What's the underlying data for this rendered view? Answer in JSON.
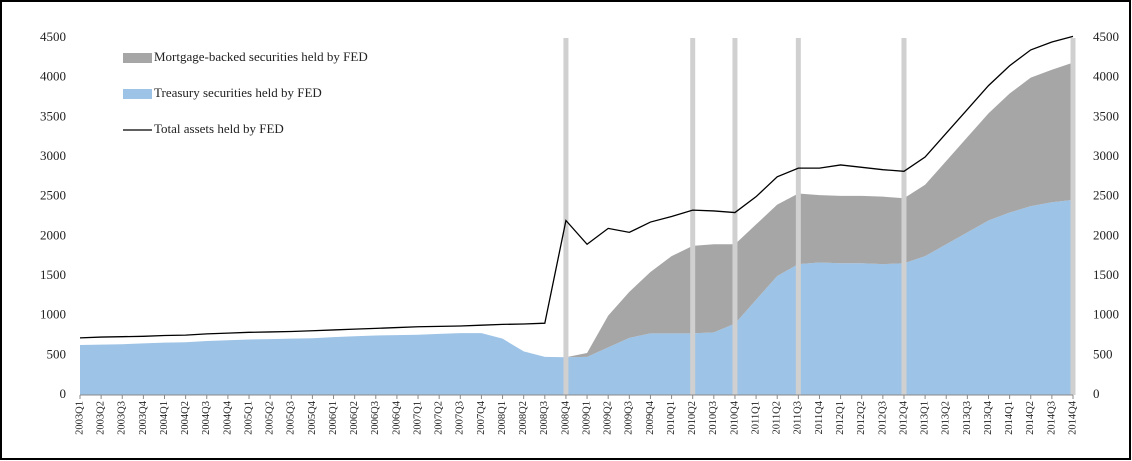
{
  "chart_data": {
    "type": "stacked-area-line",
    "categories": [
      "2003Q1",
      "2003Q2",
      "2003Q3",
      "2003Q4",
      "2004Q1",
      "2004Q2",
      "2004Q3",
      "2004Q4",
      "2005Q1",
      "2005Q2",
      "2005Q3",
      "2005Q4",
      "2006Q1",
      "2006Q2",
      "2006Q3",
      "2006Q4",
      "2007Q1",
      "2007Q2",
      "2007Q3",
      "2007Q4",
      "2008Q1",
      "2008Q2",
      "2008Q3",
      "2008Q4",
      "2009Q1",
      "2009Q2",
      "2009Q3",
      "2009Q4",
      "2010Q1",
      "2010Q2",
      "2010Q3",
      "2010Q4",
      "2011Q1",
      "2011Q2",
      "2011Q3",
      "2011Q4",
      "2012Q1",
      "2012Q2",
      "2012Q3",
      "2012Q4",
      "2013Q1",
      "2013Q2",
      "2013Q3",
      "2013Q4",
      "2014Q1",
      "2014Q2",
      "2014Q3",
      "2014Q4"
    ],
    "series": [
      {
        "name": "Treasury securities held by FED",
        "color": "#9dc3e6",
        "kind": "area",
        "values": [
          630,
          635,
          640,
          650,
          660,
          665,
          680,
          690,
          700,
          705,
          710,
          715,
          730,
          740,
          750,
          755,
          760,
          770,
          780,
          780,
          710,
          550,
          480,
          476,
          480,
          600,
          720,
          777,
          777,
          777,
          790,
          900,
          1200,
          1500,
          1650,
          1670,
          1660,
          1660,
          1650,
          1660,
          1750,
          1900,
          2050,
          2200,
          2300,
          2380,
          2430,
          2460
        ]
      },
      {
        "name": "Mortgage-backed securities held by FED",
        "color": "#a6a6a6",
        "kind": "area",
        "values": [
          0,
          0,
          0,
          0,
          0,
          0,
          0,
          0,
          0,
          0,
          0,
          0,
          0,
          0,
          0,
          0,
          0,
          0,
          0,
          0,
          0,
          0,
          0,
          0,
          50,
          400,
          580,
          773,
          973,
          1103,
          1110,
          1000,
          950,
          900,
          890,
          850,
          850,
          850,
          850,
          820,
          900,
          1050,
          1200,
          1350,
          1500,
          1620,
          1670,
          1730
        ]
      },
      {
        "name": "Total assets held by FED",
        "color": "#000000",
        "kind": "line",
        "values": [
          720,
          730,
          735,
          740,
          750,
          755,
          770,
          780,
          790,
          795,
          800,
          810,
          820,
          830,
          840,
          850,
          860,
          865,
          870,
          880,
          890,
          895,
          905,
          2200,
          1900,
          2100,
          2050,
          2180,
          2250,
          2330,
          2320,
          2300,
          2500,
          2750,
          2860,
          2860,
          2900,
          2870,
          2840,
          2820,
          3000,
          3300,
          3600,
          3900,
          4150,
          4350,
          4450,
          4520
        ]
      }
    ],
    "legend_order": [
      1,
      0,
      2
    ],
    "event_lines": [
      "2008Q4",
      "2010Q2",
      "2010Q4",
      "2011Q3",
      "2012Q4",
      "2014Q4"
    ],
    "event_color": "#d0d0d0",
    "ylim": [
      0,
      4500
    ],
    "yticks": [
      0,
      500,
      1000,
      1500,
      2000,
      2500,
      3000,
      3500,
      4000,
      4500
    ],
    "y2lim": [
      0,
      4500
    ],
    "y2ticks": [
      0,
      500,
      1000,
      1500,
      2000,
      2500,
      3000,
      3500,
      4000,
      4500
    ]
  }
}
